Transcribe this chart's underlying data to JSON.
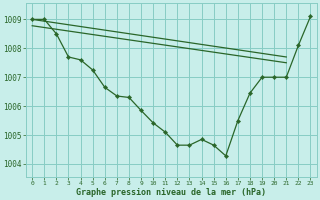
{
  "y_main": [
    1009.0,
    1009.0,
    1008.5,
    1007.7,
    1007.6,
    1007.25,
    1006.65,
    1006.35,
    1006.3,
    1005.85,
    1005.42,
    1005.1,
    1004.65,
    1004.65,
    1004.85,
    1004.65,
    1004.28,
    1005.5,
    1006.45,
    1007.0,
    1007.0,
    1007.0,
    1008.1,
    1009.1
  ],
  "trend1": [
    1009.0,
    1007.7
  ],
  "trend2": [
    1008.78,
    1007.5
  ],
  "trend_x": [
    0,
    21
  ],
  "title": "Graphe pression niveau de la mer (hPa)",
  "bg_color": "#c8eeea",
  "grid_color": "#88ccC4",
  "line_color": "#2a6629",
  "ytick_labels": [
    "1004",
    "1005",
    "1006",
    "1007",
    "1008",
    "1009"
  ],
  "yticks": [
    1004,
    1005,
    1006,
    1007,
    1008,
    1009
  ],
  "ylim": [
    1003.55,
    1009.55
  ],
  "xlim": [
    -0.5,
    23.5
  ],
  "hours": [
    0,
    1,
    2,
    3,
    4,
    5,
    6,
    7,
    8,
    9,
    10,
    11,
    12,
    13,
    14,
    15,
    16,
    17,
    18,
    19,
    20,
    21,
    22,
    23
  ],
  "xtick_labels": [
    "0",
    "1",
    "2",
    "3",
    "4",
    "5",
    "6",
    "7",
    "8",
    "9",
    "1011",
    "1213",
    "1415",
    "1617",
    "1819",
    "2021",
    "2223"
  ]
}
